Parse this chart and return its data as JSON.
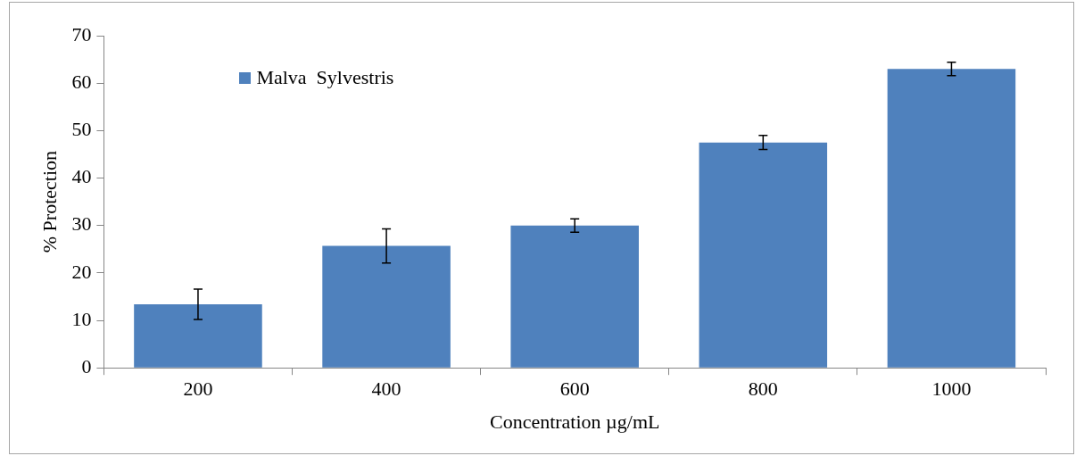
{
  "chart_data": {
    "type": "bar",
    "xlabel": "Concentration µg/mL",
    "ylabel": "% Protection",
    "categories": [
      "200",
      "400",
      "600",
      "800",
      "1000"
    ],
    "series": [
      {
        "name": "Malva  Sylvestris",
        "color": "#4f81bd",
        "values": [
          13.4,
          25.7,
          30.0,
          47.5,
          63.0
        ],
        "errors": [
          3.2,
          3.6,
          1.4,
          1.5,
          1.4
        ]
      }
    ],
    "ylim": [
      0,
      70
    ],
    "yticks": [
      0,
      10,
      20,
      30,
      40,
      50,
      60,
      70
    ],
    "grid": false,
    "legend": "top left"
  }
}
